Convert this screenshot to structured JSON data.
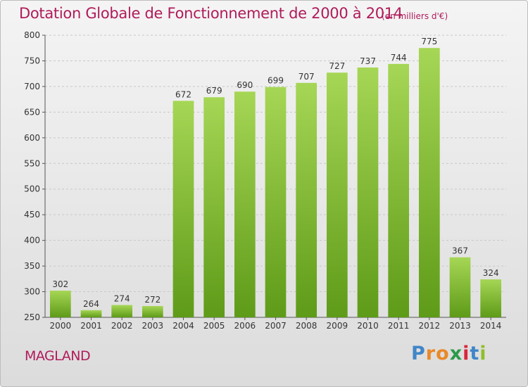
{
  "title": "Dotation Globale de Fonctionnement de 2000 à 2014",
  "unit": "(en milliers d'€)",
  "place": "MAGLAND",
  "logo": {
    "letters": [
      "P",
      "r",
      "o",
      "x",
      "i",
      "t",
      "i"
    ],
    "colors": [
      "#3f86c8",
      "#e8892a",
      "#e8892a",
      "#2a9a4a",
      "#d7263d",
      "#3f86c8",
      "#8fbf2a"
    ]
  },
  "colors": {
    "bar_light": "#a6d655",
    "bar_dark": "#5e9b18",
    "title": "#b01b5a"
  },
  "chart_data": {
    "type": "bar",
    "title": "Dotation Globale de Fonctionnement de 2000 à 2014",
    "xlabel": "",
    "ylabel": "",
    "ylim": [
      250,
      800
    ],
    "yticks": [
      250,
      300,
      350,
      400,
      450,
      500,
      550,
      600,
      650,
      700,
      750,
      800
    ],
    "grid": true,
    "categories": [
      "2000",
      "2001",
      "2002",
      "2003",
      "2004",
      "2005",
      "2006",
      "2007",
      "2008",
      "2009",
      "2010",
      "2011",
      "2012",
      "2013",
      "2014"
    ],
    "values": [
      302,
      264,
      274,
      272,
      672,
      679,
      690,
      699,
      707,
      727,
      737,
      744,
      775,
      367,
      324
    ]
  }
}
